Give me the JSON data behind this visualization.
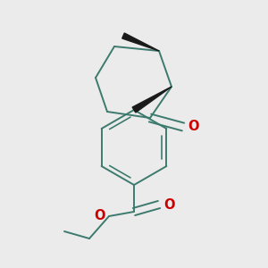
{
  "bg_color": "#ebebeb",
  "bond_color": "#3d7a6e",
  "oxygen_color": "#cc0000",
  "bond_lw": 1.4,
  "figsize": [
    3.0,
    3.0
  ],
  "dpi": 100,
  "xlim": [
    0,
    300
  ],
  "ylim": [
    0,
    300
  ]
}
